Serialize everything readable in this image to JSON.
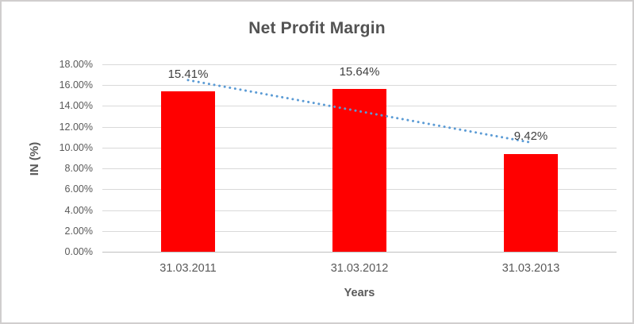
{
  "chart_data": {
    "type": "bar",
    "title": "Net Profit Margin",
    "xlabel": "Years",
    "ylabel": "IN (%)",
    "categories": [
      "31.03.2011",
      "31.03.2012",
      "31.03.2013"
    ],
    "series": [
      {
        "name": "Net Profit Margin",
        "values": [
          15.41,
          15.64,
          9.42
        ]
      }
    ],
    "data_labels": [
      "15.41%",
      "15.64%",
      "9.42%"
    ],
    "ylim": [
      0,
      18
    ],
    "ytick_step": 2,
    "ytick_values": [
      18,
      16,
      14,
      12,
      10,
      8,
      6,
      4,
      2,
      0
    ],
    "ytick_labels": [
      "18.00%",
      "16.00%",
      "14.00%",
      "12.00%",
      "10.00%",
      "8.00%",
      "6.00%",
      "4.00%",
      "2.00%",
      "0.00%"
    ],
    "grid": true,
    "legend": "none",
    "trendline": {
      "kind": "linear",
      "style": "dotted"
    },
    "colors": {
      "bar": "#FF0000",
      "trendline": "#5B9BD5",
      "gridline": "#D9D9D9",
      "axis_line": "#BFBFBF",
      "text": "#595959",
      "title_text": "#535353",
      "data_label_text": "#404040",
      "frame_border": "#D0CECE"
    }
  }
}
